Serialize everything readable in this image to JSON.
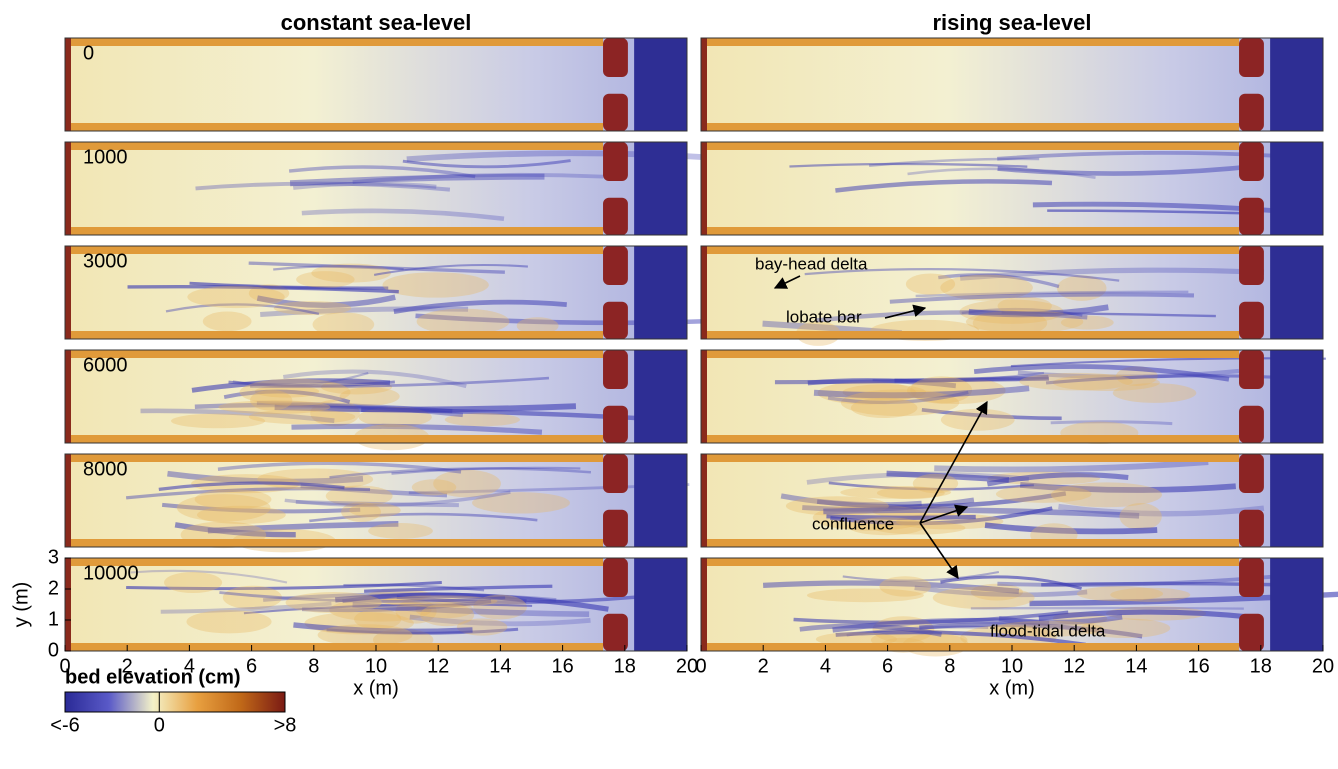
{
  "figure": {
    "columns": [
      {
        "title": "constant sea-level",
        "xlabel": "x (m)"
      },
      {
        "title": "rising sea-level",
        "xlabel": "x (m)"
      }
    ],
    "rows": [
      "0",
      "1000",
      "3000",
      "6000",
      "8000",
      "10000"
    ],
    "xlim": [
      0,
      20
    ],
    "xticks": [
      0,
      2,
      4,
      6,
      8,
      10,
      12,
      14,
      16,
      18,
      20
    ],
    "ylabel": "y (m)",
    "ylim": [
      0,
      3
    ],
    "yticks": [
      0,
      1,
      2,
      3
    ],
    "annotations": [
      "bay-head delta",
      "lobate bar",
      "confluence",
      "flood-tidal delta"
    ],
    "colorbar": {
      "title": "bed elevation (cm)",
      "lim": [
        -6,
        8
      ],
      "ticks": [
        {
          "value": -6,
          "label": "<-6"
        },
        0,
        {
          "value": 8,
          "label": ">8"
        }
      ],
      "colors": [
        "#2a2a96",
        "#5a5ac8",
        "#f4f2c8",
        "#e8a040",
        "#c06818",
        "#7a1a14"
      ]
    }
  }
}
